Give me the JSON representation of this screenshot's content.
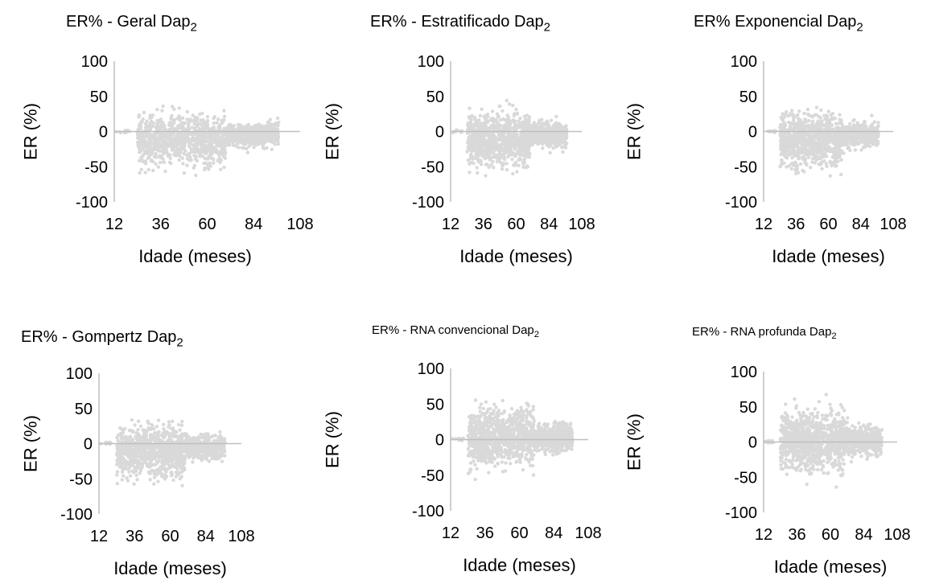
{
  "chart_data": [
    {
      "type": "scatter",
      "title_main": "ER% - Geral Dap",
      "title_sub": "2",
      "xlabel": "Idade (meses)",
      "ylabel": "ER (%)",
      "xticks": [
        12,
        36,
        60,
        84,
        108
      ],
      "yticks": [
        100,
        50,
        0,
        -50,
        -100
      ],
      "xlim": [
        12,
        108
      ],
      "ylim": [
        -100,
        100
      ],
      "grid": false,
      "series_color": "#d9d9d9",
      "points": {
        "x_range": [
          13,
          102
        ],
        "dense_x_range": [
          24,
          97
        ],
        "dense_y_range": [
          -70,
          40
        ],
        "shape": "dense_cloud",
        "n_approx": 1400
      }
    },
    {
      "type": "scatter",
      "title_main": "ER% - Estratificado Dap",
      "title_sub": "2",
      "xlabel": "Idade (meses)",
      "ylabel": "ER (%)",
      "xticks": [
        12,
        36,
        60,
        84,
        108
      ],
      "yticks": [
        100,
        50,
        0,
        -50,
        -100
      ],
      "xlim": [
        12,
        108
      ],
      "ylim": [
        -100,
        100
      ],
      "grid": false,
      "series_color": "#d9d9d9",
      "points": {
        "x_range": [
          13,
          102
        ],
        "dense_x_range": [
          24,
          97
        ],
        "dense_y_range": [
          -70,
          45
        ],
        "shape": "dense_cloud",
        "n_approx": 1400
      }
    },
    {
      "type": "scatter",
      "title_main": "ER% Exponencial Dap",
      "title_sub": "2",
      "xlabel": "Idade (meses)",
      "ylabel": "ER (%)",
      "xticks": [
        12,
        36,
        60,
        84,
        108
      ],
      "yticks": [
        100,
        50,
        0,
        -50,
        -100
      ],
      "xlim": [
        12,
        108
      ],
      "ylim": [
        -100,
        100
      ],
      "grid": false,
      "series_color": "#d9d9d9",
      "points": {
        "x_range": [
          13,
          102
        ],
        "dense_x_range": [
          24,
          97
        ],
        "dense_y_range": [
          -70,
          35
        ],
        "shape": "dense_cloud",
        "n_approx": 1400
      }
    },
    {
      "type": "scatter",
      "title_main": "ER% - Gompertz Dap",
      "title_sub": "2",
      "xlabel": "Idade (meses)",
      "ylabel": "ER (%)",
      "xticks": [
        12,
        36,
        60,
        84,
        108
      ],
      "yticks": [
        100,
        50,
        0,
        -50,
        -100
      ],
      "xlim": [
        12,
        108
      ],
      "ylim": [
        -100,
        100
      ],
      "grid": false,
      "series_color": "#d9d9d9",
      "points": {
        "x_range": [
          13,
          102
        ],
        "dense_x_range": [
          24,
          97
        ],
        "dense_y_range": [
          -70,
          35
        ],
        "shape": "dense_cloud",
        "n_approx": 1400
      }
    },
    {
      "type": "scatter",
      "title_main": "ER% - RNA convencional Dap",
      "title_sub": "2",
      "xlabel": "Idade (meses)",
      "ylabel": "ER (%)",
      "xticks": [
        12,
        36,
        60,
        84,
        108
      ],
      "yticks": [
        100,
        50,
        0,
        -50,
        -100
      ],
      "xlim": [
        12,
        108
      ],
      "ylim": [
        -100,
        100
      ],
      "grid": false,
      "series_color": "#d9d9d9",
      "points": {
        "x_range": [
          13,
          102
        ],
        "dense_x_range": [
          24,
          97
        ],
        "dense_y_range": [
          -65,
          65
        ],
        "shape": "symmetric_cloud",
        "n_approx": 1400
      }
    },
    {
      "type": "scatter",
      "title_main": "ER% - RNA profunda Dap",
      "title_sub": "2",
      "xlabel": "Idade (meses)",
      "ylabel": "ER (%)",
      "xticks": [
        12,
        36,
        60,
        84,
        108
      ],
      "yticks": [
        100,
        50,
        0,
        -50,
        -100
      ],
      "xlim": [
        12,
        108
      ],
      "ylim": [
        -100,
        100
      ],
      "grid": false,
      "series_color": "#d9d9d9",
      "points": {
        "x_range": [
          13,
          102
        ],
        "dense_x_range": [
          24,
          97
        ],
        "dense_y_range": [
          -65,
          70
        ],
        "shape": "symmetric_cloud",
        "n_approx": 1400
      }
    }
  ]
}
